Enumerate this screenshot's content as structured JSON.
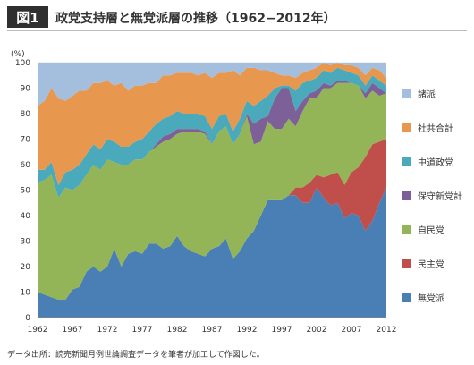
{
  "header": {
    "badge": "図1",
    "title": "政党支持層と無党派層の推移（1962−2012年）"
  },
  "source_note": "データ出所：読売新聞月例世論調査データを筆者が加工して作図した。",
  "colors": {
    "badge_bg": "#2f2f2f",
    "title_rule": "#7a7a7a"
  },
  "chart_data": {
    "type": "area",
    "stacked": true,
    "yunit": "(%)",
    "ylim": [
      0,
      100
    ],
    "yticks": [
      0,
      10,
      20,
      30,
      40,
      50,
      60,
      70,
      80,
      90,
      100
    ],
    "xlim": [
      1962,
      2012
    ],
    "xticks": [
      1962,
      1967,
      1972,
      1977,
      1982,
      1987,
      1992,
      1997,
      2002,
      2007,
      2012
    ],
    "grid": true,
    "legend_position": "right",
    "x": [
      1962,
      1963,
      1964,
      1965,
      1966,
      1967,
      1968,
      1969,
      1970,
      1971,
      1972,
      1973,
      1974,
      1975,
      1976,
      1977,
      1978,
      1979,
      1980,
      1981,
      1982,
      1983,
      1984,
      1985,
      1986,
      1987,
      1988,
      1989,
      1990,
      1991,
      1992,
      1993,
      1994,
      1995,
      1996,
      1997,
      1998,
      1999,
      2000,
      2001,
      2002,
      2003,
      2004,
      2005,
      2006,
      2007,
      2008,
      2009,
      2010,
      2011,
      2012
    ],
    "series": [
      {
        "name": "無党派",
        "color": "#4a7fb5",
        "values": [
          10,
          9,
          8,
          7,
          7,
          11,
          12,
          18,
          20,
          18,
          20,
          27,
          20,
          25,
          26,
          25,
          29,
          29,
          27,
          28,
          32,
          28,
          26,
          25,
          24,
          27,
          28,
          31,
          23,
          26,
          31,
          34,
          40,
          46,
          46,
          46,
          48,
          48,
          45,
          45,
          51,
          47,
          44,
          45,
          39,
          41,
          40,
          34,
          38,
          45,
          51
        ]
      },
      {
        "name": "民主党",
        "color": "#c04e4b",
        "values": [
          0,
          0,
          0,
          0,
          0,
          0,
          0,
          0,
          0,
          0,
          0,
          0,
          0,
          0,
          0,
          0,
          0,
          0,
          0,
          0,
          0,
          0,
          0,
          0,
          0,
          0,
          0,
          0,
          0,
          0,
          0,
          0,
          0,
          0,
          0,
          0,
          0,
          3,
          6,
          8,
          5,
          8,
          12,
          12,
          13,
          16,
          19,
          29,
          30,
          24,
          19
        ]
      },
      {
        "name": "自民党",
        "color": "#93b457",
        "values": [
          43,
          45,
          48,
          40,
          44,
          39,
          40,
          38,
          40,
          40,
          42,
          34,
          40,
          35,
          36,
          37,
          36,
          38,
          42,
          42,
          40,
          45,
          47,
          48,
          48,
          41,
          45,
          44,
          45,
          46,
          48,
          34,
          29,
          31,
          28,
          28,
          30,
          24,
          30,
          33,
          30,
          35,
          34,
          35,
          40,
          35,
          32,
          23,
          21,
          18,
          18
        ]
      },
      {
        "name": "保守新党計",
        "color": "#7c6097",
        "values": [
          0,
          0,
          0,
          0,
          0,
          0,
          0,
          0,
          0,
          0,
          0,
          0,
          0,
          0,
          0,
          0,
          0,
          1,
          2,
          2,
          2,
          1,
          1,
          1,
          1,
          0,
          0,
          0,
          0,
          0,
          1,
          8,
          9,
          2,
          12,
          16,
          12,
          6,
          4,
          2,
          3,
          2,
          1,
          1,
          1,
          0,
          0,
          2,
          3,
          3,
          0
        ]
      },
      {
        "name": "中道政党",
        "color": "#4aa9bb",
        "values": [
          5,
          4,
          5,
          5,
          6,
          8,
          8,
          8,
          8,
          8,
          8,
          8,
          7,
          7,
          7,
          8,
          8,
          8,
          7,
          7,
          7,
          6,
          6,
          6,
          6,
          6,
          6,
          5,
          5,
          6,
          5,
          7,
          7,
          8,
          4,
          1,
          1,
          8,
          7,
          5,
          5,
          5,
          5,
          5,
          4,
          4,
          4,
          3,
          3,
          3,
          3
        ]
      },
      {
        "name": "社共合計",
        "color": "#e8974f",
        "values": [
          25,
          27,
          29,
          34,
          28,
          29,
          29,
          25,
          24,
          26,
          23,
          22,
          25,
          22,
          22,
          21,
          19,
          16,
          17,
          16,
          15,
          16,
          16,
          15,
          17,
          20,
          17,
          16,
          24,
          17,
          13,
          15,
          12,
          10,
          6,
          4,
          4,
          5,
          4,
          4,
          4,
          3,
          3,
          2,
          2,
          3,
          3,
          4,
          3,
          4,
          3
        ]
      },
      {
        "name": "諸派",
        "color": "#a4bedd",
        "values": [
          17,
          15,
          10,
          14,
          15,
          13,
          11,
          11,
          8,
          8,
          7,
          9,
          8,
          11,
          9,
          9,
          8,
          8,
          5,
          5,
          4,
          4,
          4,
          5,
          4,
          6,
          4,
          4,
          3,
          5,
          2,
          2,
          3,
          3,
          4,
          5,
          5,
          6,
          4,
          3,
          2,
          0,
          1,
          0,
          1,
          1,
          2,
          5,
          2,
          3,
          6
        ]
      }
    ]
  }
}
